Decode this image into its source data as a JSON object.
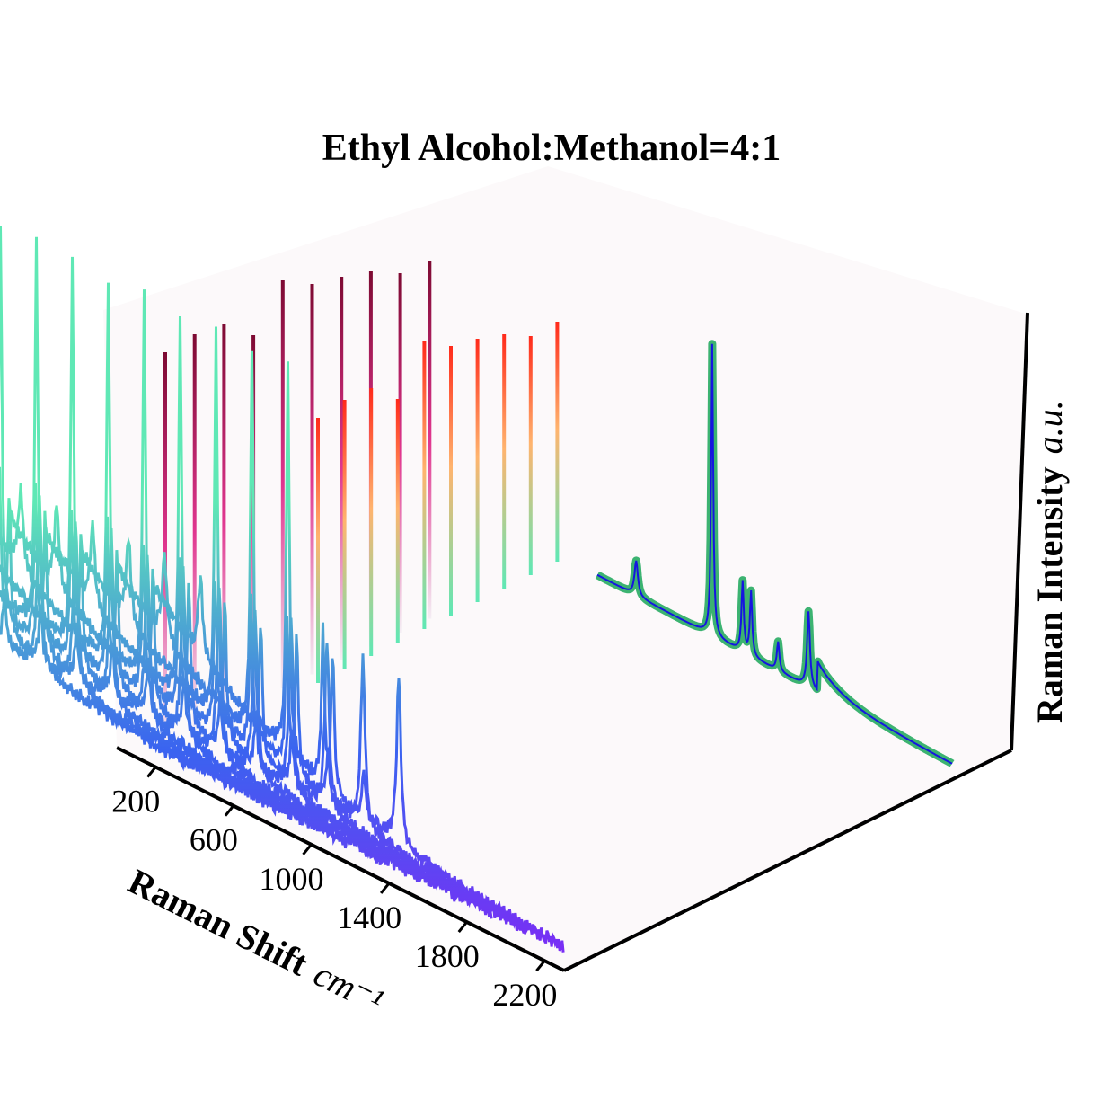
{
  "chart_data": {
    "type": "line",
    "subtype": "3d-waterfall-raman",
    "title": "Ethyl Alcohol:Methanol=4:1",
    "xlabel": "Raman Shift",
    "xlabel_unit": "cm⁻¹",
    "zlabel": "Raman Intensity",
    "zlabel_unit": "a.u.",
    "x_ticks": [
      "200",
      "600",
      "1000",
      "1400",
      "1800",
      "2200"
    ],
    "xlim": [
      0,
      2300
    ],
    "grid": false,
    "legend": "none",
    "n_spectra": 11,
    "spectrum_peaks": [
      {
        "x": 430,
        "h": 0.13,
        "w": 14
      },
      {
        "x": 880,
        "h": 0.62,
        "w": 9
      },
      {
        "x": 1060,
        "h": 0.24,
        "w": 9
      },
      {
        "x": 1110,
        "h": 0.22,
        "w": 9
      },
      {
        "x": 1270,
        "h": 0.08,
        "w": 10
      },
      {
        "x": 1450,
        "h": 0.27,
        "w": 13
      }
    ],
    "colors": {
      "front_spectra_low": "#7a2df5",
      "front_spectra_high": "#5fe8b5",
      "sharp_peaks_top": "#ff2a1a",
      "sharp_peaks_mid": "#ffb46e",
      "back_peaks_top": "#7d0a32",
      "back_peaks_mid": "#e0368f",
      "reference_fill": "#3cb371",
      "reference_line": "#1515e0",
      "pane": "#fcf9fa"
    }
  }
}
